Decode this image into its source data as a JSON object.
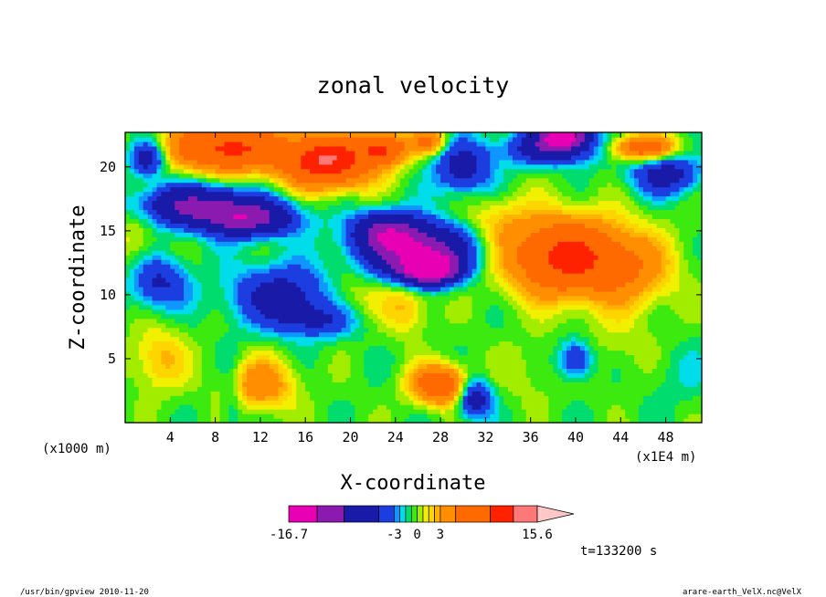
{
  "chart_data": {
    "type": "heatmap",
    "title": "zonal velocity",
    "xlabel": "X-coordinate",
    "ylabel": "Z-coordinate",
    "x_unit_left": "(x1000 m)",
    "x_unit_right": "(x1E4 m)",
    "xlim": [
      0,
      51.2
    ],
    "ylim": [
      0,
      22.7
    ],
    "x_ticks": [
      4,
      8,
      12,
      16,
      20,
      24,
      28,
      32,
      36,
      40,
      44,
      48
    ],
    "y_ticks": [
      5,
      10,
      15,
      20
    ],
    "colorbar": {
      "levels": [
        -16.7,
        -13.0,
        -9.5,
        -5.0,
        -3.0,
        -2.25,
        -1.5,
        -0.75,
        0,
        0.75,
        1.5,
        2.25,
        3.0,
        5.0,
        9.5,
        12.5,
        15.6
      ],
      "colors": [
        "#e800b4",
        "#8a1ab0",
        "#1a1aa8",
        "#1c3ee0",
        "#0f96ff",
        "#00dcea",
        "#00dd6e",
        "#3cea10",
        "#a2ec00",
        "#f0f000",
        "#ffd500",
        "#ffb300",
        "#ff8e00",
        "#ff6a00",
        "#ff2200",
        "#ff7878"
      ],
      "extend_color": "#ffc8c8",
      "labels": [
        "-16.7",
        "-3",
        "0",
        "3",
        "15.6"
      ],
      "label_values": [
        -16.7,
        -3,
        0,
        3,
        15.6
      ]
    },
    "blobs": [
      {
        "x": 6,
        "y": 17,
        "rx": 5,
        "ry": 1.6,
        "v": -9
      },
      {
        "x": 11,
        "y": 16,
        "rx": 4,
        "ry": 1.4,
        "v": -10
      },
      {
        "x": 14,
        "y": 10,
        "rx": 4.5,
        "ry": 2.3,
        "v": -6
      },
      {
        "x": 17,
        "y": 8,
        "rx": 3.5,
        "ry": 1.3,
        "v": -4
      },
      {
        "x": 2,
        "y": 20.7,
        "rx": 1.5,
        "ry": 1.3,
        "v": -7
      },
      {
        "x": 3,
        "y": 11,
        "rx": 2.5,
        "ry": 2.0,
        "v": -5
      },
      {
        "x": 26,
        "y": 13.5,
        "rx": 4.5,
        "ry": 2.0,
        "v": -12
      },
      {
        "x": 27,
        "y": 12,
        "rx": 2.5,
        "ry": 1.1,
        "v": -14
      },
      {
        "x": 23,
        "y": 15,
        "rx": 3.0,
        "ry": 1.5,
        "v": -8
      },
      {
        "x": 30,
        "y": 20,
        "rx": 2.5,
        "ry": 2.0,
        "v": -6
      },
      {
        "x": 38,
        "y": 21.5,
        "rx": 4.0,
        "ry": 1.2,
        "v": -8
      },
      {
        "x": 39,
        "y": 22.5,
        "rx": 2.0,
        "ry": 0.8,
        "v": -15
      },
      {
        "x": 48,
        "y": 19.5,
        "rx": 3.0,
        "ry": 1.6,
        "v": -6
      },
      {
        "x": 40,
        "y": 5,
        "rx": 1.5,
        "ry": 1.5,
        "v": -5
      },
      {
        "x": 31,
        "y": 2,
        "rx": 1.5,
        "ry": 1.5,
        "v": -7
      },
      {
        "x": 9.5,
        "y": 2,
        "rx": 1.0,
        "ry": 3.0,
        "v": -2
      },
      {
        "x": 9,
        "y": 21.5,
        "rx": 5,
        "ry": 1.8,
        "v": 11
      },
      {
        "x": 18,
        "y": 20.5,
        "rx": 4,
        "ry": 2.0,
        "v": 13
      },
      {
        "x": 23,
        "y": 21.5,
        "rx": 2,
        "ry": 1.2,
        "v": 9
      },
      {
        "x": 27,
        "y": 22,
        "rx": 1.5,
        "ry": 1.0,
        "v": 6
      },
      {
        "x": 39,
        "y": 13,
        "rx": 5,
        "ry": 3.0,
        "v": 11
      },
      {
        "x": 45,
        "y": 12,
        "rx": 4,
        "ry": 3.0,
        "v": 4
      },
      {
        "x": 28,
        "y": 3,
        "rx": 2.5,
        "ry": 1.5,
        "v": 9
      },
      {
        "x": 12,
        "y": 3,
        "rx": 3.0,
        "ry": 2.0,
        "v": 5
      },
      {
        "x": 3,
        "y": 5,
        "rx": 2.5,
        "ry": 2.5,
        "v": 3
      },
      {
        "x": 20,
        "y": 10,
        "rx": 3,
        "ry": 2.0,
        "v": 2
      },
      {
        "x": 25,
        "y": 9,
        "rx": 2,
        "ry": 2.0,
        "v": 3
      },
      {
        "x": 46,
        "y": 21.5,
        "rx": 3,
        "ry": 1.0,
        "v": 8
      },
      {
        "x": 49,
        "y": 4,
        "rx": 3,
        "ry": 2.5,
        "v": -1
      },
      {
        "x": 36,
        "y": 4,
        "rx": 3,
        "ry": 2.5,
        "v": 1
      },
      {
        "x": 44,
        "y": 6,
        "rx": 4,
        "ry": 2.5,
        "v": 1
      },
      {
        "x": 33,
        "y": 16,
        "rx": 3,
        "ry": 2.0,
        "v": 2
      },
      {
        "x": 1,
        "y": 15,
        "rx": 2,
        "ry": 3.0,
        "v": 2
      }
    ],
    "base_value": -0.5
  },
  "annotations": {
    "time": "t=133200 s",
    "footer_left": "/usr/bin/gpview   2010-11-20",
    "footer_right": "arare-earth_VelX.nc@VelX"
  }
}
